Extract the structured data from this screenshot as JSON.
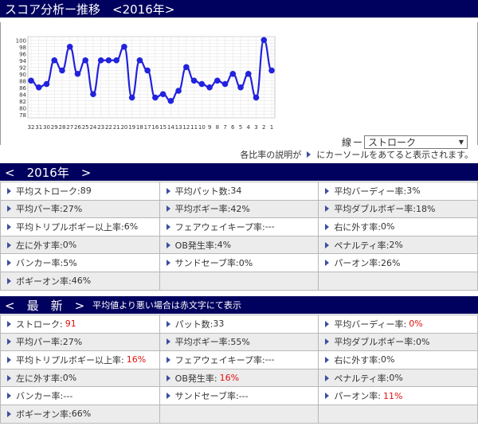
{
  "header": {
    "title": "スコア分析ー推移　<2016年>"
  },
  "chart_data": {
    "type": "line",
    "x": [
      "32",
      "31",
      "30",
      "29",
      "28",
      "27",
      "26",
      "25",
      "24",
      "23",
      "22",
      "21",
      "20",
      "19",
      "18",
      "17",
      "16",
      "15",
      "14",
      "13",
      "12",
      "11",
      "10",
      "9",
      "8",
      "7",
      "6",
      "5",
      "4",
      "3",
      "2",
      "1"
    ],
    "values": [
      88,
      86,
      87,
      94,
      91,
      98,
      90,
      94,
      84,
      94,
      94,
      94,
      98,
      83,
      94,
      91,
      83,
      84,
      82,
      85,
      92,
      88,
      87,
      86,
      88,
      87,
      90,
      86,
      90,
      83,
      100,
      91
    ],
    "yticks": [
      "100",
      "98",
      "96",
      "94",
      "92",
      "90",
      "88",
      "86",
      "84",
      "82",
      "80",
      "78"
    ],
    "ylim": [
      77,
      101
    ],
    "grid": true,
    "line_color": "#2222dd"
  },
  "line_selector": {
    "label": "線",
    "dash": "ー",
    "selected": "ストローク"
  },
  "note": {
    "before": "各比率の説明が",
    "after": "にカーソールをあてると表示されます。"
  },
  "year_section": {
    "header": "<　2016年　>",
    "rows": [
      [
        {
          "label": "平均ストローク:",
          "value": "89"
        },
        {
          "label": "平均パット数:",
          "value": "34"
        },
        {
          "label": "平均バーディー率:",
          "value": "3%"
        }
      ],
      [
        {
          "label": "平均パー率:",
          "value": "27%"
        },
        {
          "label": "平均ボギー率:",
          "value": "42%"
        },
        {
          "label": "平均ダブルボギー率:",
          "value": "18%"
        }
      ],
      [
        {
          "label": "平均トリプルボギー以上率:",
          "value": "6%"
        },
        {
          "label": "フェアウェイキープ率:",
          "value": "---"
        },
        {
          "label": "右に外す率:",
          "value": "0%"
        }
      ],
      [
        {
          "label": "左に外す率:",
          "value": "0%"
        },
        {
          "label": "OB発生率:",
          "value": "4%"
        },
        {
          "label": "ペナルティ率:",
          "value": "2%"
        }
      ],
      [
        {
          "label": "バンカー率:",
          "value": "5%"
        },
        {
          "label": "サンドセーブ率:",
          "value": "0%"
        },
        {
          "label": "パーオン率:",
          "value": "26%"
        }
      ],
      [
        {
          "label": "ボギーオン率:",
          "value": "46%"
        }
      ]
    ]
  },
  "latest_section": {
    "header": "<　最　新　>",
    "note": "平均値より悪い場合は赤文字にて表示",
    "rows": [
      [
        {
          "label": "ストローク:",
          "value": "91",
          "bad": true
        },
        {
          "label": "パット数:",
          "value": "33"
        },
        {
          "label": "平均バーディー率:",
          "value": "0%",
          "bad": true
        }
      ],
      [
        {
          "label": "平均パー率:",
          "value": "27%"
        },
        {
          "label": "平均ボギー率:",
          "value": "55%"
        },
        {
          "label": "平均ダブルボギー率:",
          "value": "0%"
        }
      ],
      [
        {
          "label": "平均トリプルボギー以上率:",
          "value": "16%",
          "bad": true
        },
        {
          "label": "フェアウェイキープ率:",
          "value": "---"
        },
        {
          "label": "右に外す率:",
          "value": "0%"
        }
      ],
      [
        {
          "label": "左に外す率:",
          "value": "0%"
        },
        {
          "label": "OB発生率:",
          "value": "16%",
          "bad": true
        },
        {
          "label": "ペナルティ率:",
          "value": "0%"
        }
      ],
      [
        {
          "label": "バンカー率:",
          "value": "---"
        },
        {
          "label": "サンドセーブ率:",
          "value": "---"
        },
        {
          "label": "パーオン率:",
          "value": "11%",
          "bad": true
        }
      ],
      [
        {
          "label": "ボギーオン率:",
          "value": "66%"
        }
      ]
    ]
  }
}
